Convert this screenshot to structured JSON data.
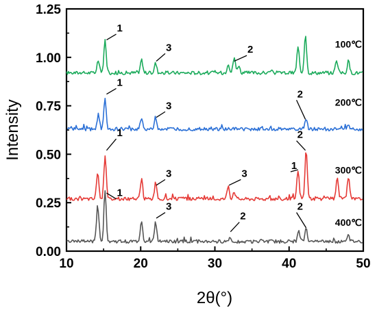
{
  "chart_data": {
    "type": "line",
    "title": "",
    "xlabel": "2θ(°)",
    "ylabel": "Intensity",
    "xlim": [
      10,
      50
    ],
    "ylim": [
      0,
      1.25
    ],
    "xticks": [
      10,
      20,
      30,
      40,
      50
    ],
    "xtick_labels": [
      "10",
      "20",
      "30",
      "40",
      "50"
    ],
    "yticks": [
      0,
      0.25,
      0.5,
      0.75,
      1.0,
      1.25
    ],
    "ytick_labels": [
      "0.00",
      "0.25",
      "0.50",
      "0.75",
      "1.00",
      "1.25"
    ],
    "grid": false,
    "series": [
      {
        "name": "100℃",
        "color": "#1aaa5a",
        "baseline": 0.92,
        "peaks": [
          [
            14.3,
            0.06
          ],
          [
            15.2,
            0.17
          ],
          [
            20.1,
            0.07
          ],
          [
            22.0,
            0.05
          ],
          [
            31.8,
            0.05
          ],
          [
            32.6,
            0.08
          ],
          [
            33.2,
            0.04
          ],
          [
            41.2,
            0.13
          ],
          [
            42.2,
            0.2
          ],
          [
            46.4,
            0.07
          ],
          [
            48.0,
            0.06
          ]
        ]
      },
      {
        "name": "200℃",
        "color": "#2a6fd6",
        "baseline": 0.63,
        "peaks": [
          [
            14.3,
            0.08
          ],
          [
            15.2,
            0.16
          ],
          [
            20.1,
            0.06
          ],
          [
            22.0,
            0.06
          ],
          [
            42.3,
            0.05
          ],
          [
            48.0,
            0.02
          ]
        ]
      },
      {
        "name": "300℃",
        "color": "#e53935",
        "baseline": 0.27,
        "peaks": [
          [
            14.2,
            0.14
          ],
          [
            15.2,
            0.23
          ],
          [
            20.1,
            0.1
          ],
          [
            22.0,
            0.08
          ],
          [
            31.8,
            0.07
          ],
          [
            32.6,
            0.04
          ],
          [
            41.2,
            0.15
          ],
          [
            42.3,
            0.25
          ],
          [
            46.5,
            0.11
          ],
          [
            48.0,
            0.11
          ]
        ]
      },
      {
        "name": "400℃",
        "color": "#555555",
        "baseline": 0.05,
        "peaks": [
          [
            14.2,
            0.19
          ],
          [
            15.2,
            0.27
          ],
          [
            20.1,
            0.11
          ],
          [
            22.0,
            0.1
          ],
          [
            32.0,
            0.02
          ],
          [
            41.3,
            0.05
          ],
          [
            42.3,
            0.07
          ],
          [
            48.0,
            0.03
          ]
        ]
      }
    ],
    "legend_labels": [
      {
        "text": "100℃",
        "x": 48,
        "y": 1.05
      },
      {
        "text": "200℃",
        "x": 48,
        "y": 0.75
      },
      {
        "text": "300℃",
        "x": 48,
        "y": 0.4
      },
      {
        "text": "400℃",
        "x": 48,
        "y": 0.13
      }
    ],
    "annotations": [
      {
        "text": "1",
        "x": 16.7,
        "y": 1.13,
        "tx": 15.4,
        "ty": 1.09
      },
      {
        "text": "3",
        "x": 23.3,
        "y": 1.03,
        "tx": 22.1,
        "ty": 0.98
      },
      {
        "text": "2",
        "x": 34.3,
        "y": 1.02,
        "tx": 32.6,
        "ty": 0.98
      },
      {
        "text": "1",
        "x": 16.7,
        "y": 0.85,
        "tx": 15.4,
        "ty": 0.81
      },
      {
        "text": "3",
        "x": 23.3,
        "y": 0.73,
        "tx": 22.1,
        "ty": 0.69
      },
      {
        "text": "2",
        "x": 41.0,
        "y": 0.79,
        "tx": 42.2,
        "ty": 0.68
      },
      {
        "text": "1",
        "x": 16.7,
        "y": 0.59,
        "tx": 15.4,
        "ty": 0.52
      },
      {
        "text": "3",
        "x": 23.3,
        "y": 0.38,
        "tx": 22.1,
        "ty": 0.34
      },
      {
        "text": "3",
        "x": 33.5,
        "y": 0.38,
        "tx": 31.9,
        "ty": 0.34
      },
      {
        "text": "2",
        "x": 41.0,
        "y": 0.58,
        "tx": 42.2,
        "ty": 0.52
      },
      {
        "text": "1",
        "x": 40.2,
        "y": 0.42,
        "tx": 41.2,
        "ty": 0.42
      },
      {
        "text": "1",
        "x": 16.7,
        "y": 0.28,
        "tx": 15.4,
        "ty": 0.3
      },
      {
        "text": "3",
        "x": 23.3,
        "y": 0.21,
        "tx": 22.1,
        "ty": 0.17
      },
      {
        "text": "2",
        "x": 33.3,
        "y": 0.16,
        "tx": 32.1,
        "ty": 0.1
      },
      {
        "text": "2",
        "x": 41.0,
        "y": 0.21,
        "tx": 42.3,
        "ty": 0.12
      }
    ]
  }
}
